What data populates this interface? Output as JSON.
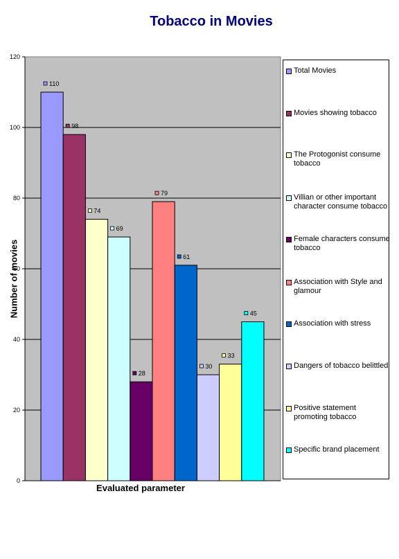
{
  "chart_data": {
    "type": "bar",
    "title": "Tobacco in Movies",
    "xlabel": "Evaluated parameter",
    "ylabel": "Number of movies",
    "ylim": [
      0,
      120
    ],
    "yticks": [
      0,
      20,
      40,
      60,
      80,
      100,
      120
    ],
    "grid": true,
    "legend_position": "right",
    "series": [
      {
        "name": "Total Movies",
        "value": 110,
        "label": "110",
        "color": "#9999ff"
      },
      {
        "name": "Movies showing tobacco",
        "value": 98,
        "label": "98",
        "color": "#993366"
      },
      {
        "name": "The Protogonist consume tobacco",
        "value": 74,
        "label": "74",
        "color": "#ffffcc"
      },
      {
        "name": "Villian or other important character consume tobacco",
        "value": 69,
        "label": "69",
        "color": "#ccffff"
      },
      {
        "name": "Female characters consume tobacco",
        "value": 28,
        "label": "28",
        "color": "#660066"
      },
      {
        "name": "Association with Style and glamour",
        "value": 79,
        "label": "79",
        "color": "#ff8080"
      },
      {
        "name": "Association with stress",
        "value": 61,
        "label": "61",
        "color": "#0066cc"
      },
      {
        "name": "Dangers of tobacco belittled",
        "value": 30,
        "label": "30",
        "color": "#ccccff"
      },
      {
        "name": "Positive statement promoting tobacco",
        "value": 33,
        "label": "33",
        "color": "#ffff99"
      },
      {
        "name": "Specific brand placement",
        "value": 45,
        "label": "45",
        "color": "#00ffff"
      }
    ]
  }
}
